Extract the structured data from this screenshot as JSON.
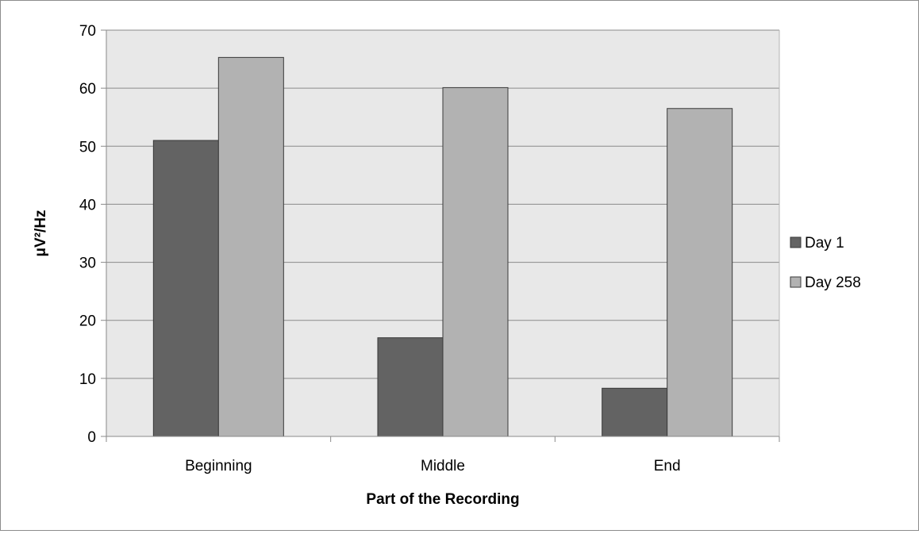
{
  "chart_data": {
    "type": "bar",
    "title": "",
    "xlabel": "Part of the Recording",
    "ylabel": "μV²/Hz",
    "categories": [
      "Beginning",
      "Middle",
      "End"
    ],
    "series": [
      {
        "name": "Day 1",
        "values": [
          51,
          17,
          8.3
        ]
      },
      {
        "name": "Day 258",
        "values": [
          65.3,
          60.1,
          56.5
        ]
      }
    ],
    "ylim": [
      0,
      70
    ],
    "yticks": [
      0,
      10,
      20,
      30,
      40,
      50,
      60,
      70
    ],
    "grid": true,
    "legend_position": "right",
    "colors": {
      "Day 1": "#636363",
      "Day 258": "#b2b2b2",
      "plot_background": "#e8e8e8",
      "gridline": "#8a8a8a"
    }
  }
}
